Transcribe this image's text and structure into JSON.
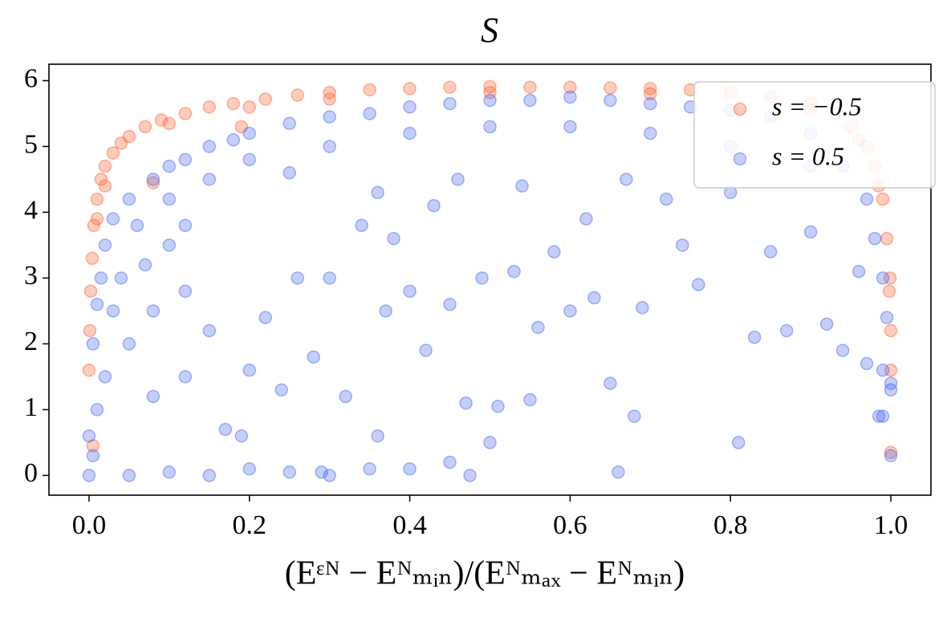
{
  "chart_data": {
    "type": "scatter",
    "title": "S",
    "x_label": "(Eᵋᴺ − Eᴺₘᵢₙ)/(Eᴺₘₐₓ − Eᴺₘᵢₙ)",
    "xlim": [
      -0.05,
      1.05
    ],
    "ylim": [
      -0.3,
      6.25
    ],
    "xticks": [
      {
        "value": 0,
        "label": "0.0"
      },
      {
        "value": 0.2,
        "label": "0.2"
      },
      {
        "value": 0.4,
        "label": "0.4"
      },
      {
        "value": 0.6,
        "label": "0.6"
      },
      {
        "value": 0.8,
        "label": "0.8"
      },
      {
        "value": 1,
        "label": "1.0"
      }
    ],
    "yticks": [
      0,
      1,
      2,
      3,
      4,
      5,
      6
    ],
    "grid": false,
    "legend": "upper right",
    "series": [
      {
        "name": "s = −0.5",
        "color": "#ff5a28",
        "x": [
          0,
          0.001,
          0.002,
          0.004,
          0.006,
          0.01,
          0.015,
          0.02,
          0.03,
          0.04,
          0.05,
          0.07,
          0.09,
          0.12,
          0.15,
          0.18,
          0.22,
          0.26,
          0.3,
          0.35,
          0.4,
          0.45,
          0.5,
          0.55,
          0.6,
          0.65,
          0.7,
          0.75,
          0.8,
          0.85,
          0.9,
          0.93,
          0.95,
          0.97,
          0.98,
          0.99,
          0.995,
          0.998,
          1.0,
          1.0,
          0.005,
          0.08,
          0.19,
          0.1,
          0.2,
          0.3,
          0.5,
          0.7,
          0.9,
          0.01,
          0.02,
          0.96,
          0.985,
          1.0,
          0.999
        ],
        "values": [
          1.6,
          2.2,
          2.8,
          3.3,
          3.8,
          4.2,
          4.5,
          4.7,
          4.9,
          5.05,
          5.15,
          5.3,
          5.4,
          5.5,
          5.6,
          5.65,
          5.72,
          5.78,
          5.82,
          5.86,
          5.88,
          5.9,
          5.91,
          5.9,
          5.9,
          5.89,
          5.88,
          5.86,
          5.82,
          5.76,
          5.65,
          5.5,
          5.3,
          5.0,
          4.7,
          4.2,
          3.6,
          2.8,
          1.6,
          0.35,
          0.45,
          4.45,
          5.3,
          5.35,
          5.6,
          5.72,
          5.82,
          5.8,
          5.55,
          3.9,
          4.4,
          5.1,
          4.4,
          2.2,
          3.0
        ]
      },
      {
        "name": "s = 0.5",
        "color": "#3f5ff5",
        "x": [
          0.02,
          0.03,
          0.05,
          0.06,
          0.08,
          0.1,
          0.12,
          0.15,
          0.18,
          0.2,
          0.25,
          0.3,
          0.35,
          0.4,
          0.45,
          0.5,
          0.55,
          0.6,
          0.65,
          0.7,
          0.75,
          0.8,
          0.85,
          0.9,
          0.94,
          0.97,
          0.98,
          0.99,
          0.995,
          1.0,
          1.0,
          1.0,
          0.99,
          0.985,
          0.1,
          0.15,
          0.2,
          0.3,
          0.4,
          0.5,
          0.6,
          0.7,
          0.8,
          0.9,
          0.12,
          0.25,
          0.0,
          0.005,
          0.01,
          0.005,
          0.01,
          0.015,
          0.0,
          0.02,
          0.03,
          0.04,
          0.05,
          0.07,
          0.08,
          0.1,
          0.12,
          0.05,
          0.1,
          0.15,
          0.2,
          0.25,
          0.3,
          0.35,
          0.4,
          0.45,
          0.475,
          0.66,
          0.29,
          0.08,
          0.12,
          0.15,
          0.17,
          0.19,
          0.2,
          0.22,
          0.24,
          0.26,
          0.28,
          0.3,
          0.32,
          0.34,
          0.36,
          0.37,
          0.38,
          0.4,
          0.42,
          0.43,
          0.45,
          0.47,
          0.49,
          0.5,
          0.51,
          0.53,
          0.55,
          0.56,
          0.58,
          0.6,
          0.62,
          0.63,
          0.65,
          0.68,
          0.69,
          0.72,
          0.74,
          0.76,
          0.8,
          0.81,
          0.83,
          0.85,
          0.87,
          0.9,
          0.92,
          0.94,
          0.96,
          0.97,
          0.99,
          0.54,
          0.46,
          0.36,
          0.67
        ],
        "values": [
          3.5,
          3.9,
          4.2,
          3.8,
          4.5,
          4.7,
          4.8,
          5.0,
          5.1,
          5.2,
          5.35,
          5.45,
          5.5,
          5.6,
          5.65,
          5.7,
          5.7,
          5.75,
          5.7,
          5.65,
          5.6,
          5.55,
          5.45,
          5.2,
          4.7,
          4.2,
          3.6,
          3.0,
          2.4,
          1.4,
          1.3,
          0.3,
          1.6,
          0.9,
          4.2,
          4.5,
          4.8,
          5.0,
          5.2,
          5.3,
          5.3,
          5.2,
          5.0,
          4.7,
          3.8,
          4.6,
          0.0,
          0.3,
          1.0,
          2.0,
          2.6,
          3.0,
          0.6,
          1.5,
          2.5,
          3.0,
          2.0,
          3.2,
          2.5,
          3.5,
          2.8,
          0.0,
          0.05,
          0.0,
          0.1,
          0.05,
          0.0,
          0.1,
          0.1,
          0.2,
          0.0,
          0.05,
          0.05,
          1.2,
          1.5,
          2.2,
          0.7,
          0.6,
          1.6,
          2.4,
          1.3,
          3.0,
          1.8,
          3.0,
          1.2,
          3.8,
          0.6,
          2.5,
          3.6,
          2.8,
          1.9,
          4.1,
          2.6,
          1.1,
          3.0,
          0.5,
          1.05,
          3.1,
          1.15,
          2.25,
          3.4,
          2.5,
          3.9,
          2.7,
          1.4,
          0.9,
          2.55,
          4.2,
          3.5,
          2.9,
          4.3,
          0.5,
          2.1,
          3.4,
          2.2,
          3.7,
          2.3,
          1.9,
          3.1,
          1.7,
          0.9,
          4.4,
          4.5,
          4.3,
          4.5
        ]
      }
    ]
  }
}
